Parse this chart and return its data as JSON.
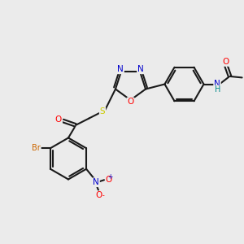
{
  "background_color": "#ebebeb",
  "bond_color": "#1a1a1a",
  "figsize": [
    3.0,
    3.0
  ],
  "dpi": 100,
  "atoms": {
    "N_label_color": "#0000cc",
    "O_label_color": "#ff0000",
    "S_label_color": "#cccc00",
    "Br_label_color": "#cc6600",
    "NH_color": "#008888",
    "NO2_N_color": "#0000cc",
    "NO2_O_color": "#ff0000"
  },
  "layout": {
    "xlim": [
      0,
      10
    ],
    "ylim": [
      0,
      10
    ]
  }
}
